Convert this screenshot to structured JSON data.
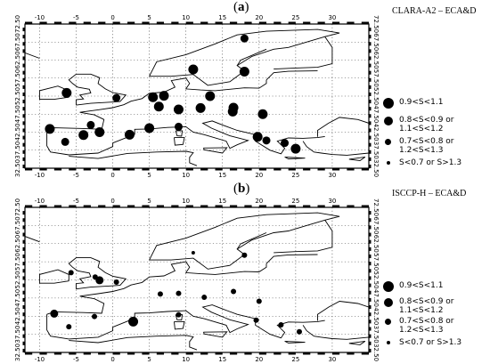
{
  "panels": [
    {
      "label_open": "(",
      "label_letter": "a",
      "label_close": ")",
      "title": "CLARA-A2 – ECA&D",
      "legend": [
        {
          "lines": [
            "0.9<S<1.1"
          ],
          "size": "large"
        },
        {
          "lines": [
            "0.8<S<0.9  or",
            "1.1<S<1.2"
          ],
          "size": "medium"
        },
        {
          "lines": [
            "0.7<S<0.8  or",
            "1.2<S<1.3"
          ],
          "size": "small"
        },
        {
          "lines": [
            "S<0.7  or  S>1.3"
          ],
          "size": "tiny"
        }
      ],
      "stations": [
        {
          "lon": 18.0,
          "lat": 68.5,
          "cls": "medium"
        },
        {
          "lon": 11.0,
          "lat": 59.9,
          "cls": "large"
        },
        {
          "lon": 18.0,
          "lat": 59.3,
          "cls": "large"
        },
        {
          "lon": -6.3,
          "lat": 53.4,
          "cls": "large"
        },
        {
          "lon": 0.5,
          "lat": 52.0,
          "cls": "medium"
        },
        {
          "lon": 5.5,
          "lat": 52.2,
          "cls": "large"
        },
        {
          "lon": 7.0,
          "lat": 52.6,
          "cls": "large"
        },
        {
          "lon": 6.3,
          "lat": 49.6,
          "cls": "large"
        },
        {
          "lon": 13.3,
          "lat": 52.5,
          "cls": "large"
        },
        {
          "lon": 9.0,
          "lat": 48.8,
          "cls": "large"
        },
        {
          "lon": 12.0,
          "lat": 49.2,
          "cls": "large"
        },
        {
          "lon": 16.4,
          "lat": 48.2,
          "cls": "large"
        },
        {
          "lon": 16.5,
          "lat": 49.3,
          "cls": "large"
        },
        {
          "lon": 20.5,
          "lat": 47.5,
          "cls": "large"
        },
        {
          "lon": -8.6,
          "lat": 43.4,
          "cls": "large"
        },
        {
          "lon": -3.0,
          "lat": 44.5,
          "cls": "medium"
        },
        {
          "lon": -1.8,
          "lat": 42.5,
          "cls": "large"
        },
        {
          "lon": -4.0,
          "lat": 41.7,
          "cls": "large"
        },
        {
          "lon": 2.3,
          "lat": 41.8,
          "cls": "large"
        },
        {
          "lon": 5.0,
          "lat": 43.6,
          "cls": "large"
        },
        {
          "lon": 9.0,
          "lat": 44.0,
          "cls": "medium"
        },
        {
          "lon": -6.5,
          "lat": 39.8,
          "cls": "medium"
        },
        {
          "lon": 19.8,
          "lat": 41.2,
          "cls": "large"
        },
        {
          "lon": 21.0,
          "lat": 40.2,
          "cls": "medium"
        },
        {
          "lon": 23.5,
          "lat": 39.5,
          "cls": "medium"
        },
        {
          "lon": 25.0,
          "lat": 37.9,
          "cls": "large"
        }
      ]
    },
    {
      "label_open": "(",
      "label_letter": "b",
      "label_close": ")",
      "title": "ISCCP-H – ECA&D",
      "legend": [
        {
          "lines": [
            "0.9<S<1.1"
          ],
          "size": "large"
        },
        {
          "lines": [
            "0.8<S<0.9  or",
            "1.1<S<1.2"
          ],
          "size": "medium"
        },
        {
          "lines": [
            "0.7<S<0.8  or",
            "1.2<S<1.3"
          ],
          "size": "small"
        },
        {
          "lines": [
            "S<0.7  or  S>1.3"
          ],
          "size": "tiny"
        }
      ],
      "stations": [
        {
          "lon": 11.0,
          "lat": 60.0,
          "cls": "tiny"
        },
        {
          "lon": 18.0,
          "lat": 59.3,
          "cls": "small"
        },
        {
          "lon": -5.7,
          "lat": 54.5,
          "cls": "small"
        },
        {
          "lon": -2.4,
          "lat": 53.3,
          "cls": "small"
        },
        {
          "lon": -1.8,
          "lat": 52.4,
          "cls": "medium"
        },
        {
          "lon": 0.5,
          "lat": 51.9,
          "cls": "small"
        },
        {
          "lon": 9.0,
          "lat": 48.8,
          "cls": "small"
        },
        {
          "lon": 16.5,
          "lat": 49.3,
          "cls": "small"
        },
        {
          "lon": 6.5,
          "lat": 48.6,
          "cls": "small"
        },
        {
          "lon": 12.5,
          "lat": 47.7,
          "cls": "small"
        },
        {
          "lon": 20.0,
          "lat": 46.6,
          "cls": "small"
        },
        {
          "lon": -8.0,
          "lat": 43.2,
          "cls": "medium"
        },
        {
          "lon": -2.5,
          "lat": 42.4,
          "cls": "small"
        },
        {
          "lon": 2.8,
          "lat": 41.0,
          "cls": "large"
        },
        {
          "lon": 9.0,
          "lat": 42.9,
          "cls": "small"
        },
        {
          "lon": -6.0,
          "lat": 39.6,
          "cls": "small"
        },
        {
          "lon": 19.6,
          "lat": 41.4,
          "cls": "small"
        },
        {
          "lon": 23.0,
          "lat": 40.1,
          "cls": "small"
        },
        {
          "lon": 25.5,
          "lat": 38.2,
          "cls": "small"
        }
      ]
    }
  ],
  "axes": {
    "lon_ticks": [
      "-10",
      "-5",
      "0",
      "5",
      "10",
      "15",
      "20",
      "25",
      "30"
    ],
    "lat_ticks": [
      "32.50",
      "37.50",
      "42.50",
      "47.50",
      "52.50",
      "57.50",
      "62.50",
      "67.50",
      "72.50"
    ],
    "lon_range": [
      -12,
      35
    ],
    "lat_range": [
      32.5,
      72.5
    ]
  }
}
